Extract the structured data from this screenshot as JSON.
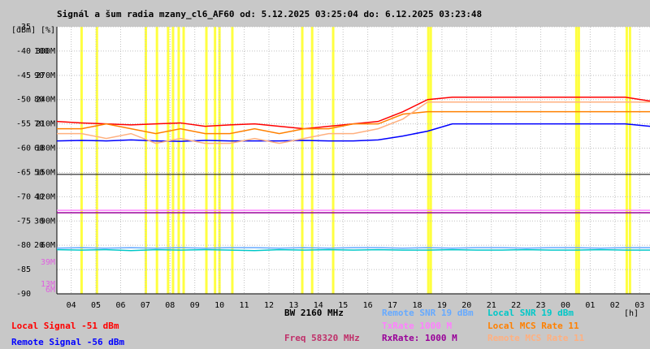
{
  "chart_data": {
    "type": "line",
    "title": "Signál a šum radia mzany_cl6_AF60 od: 5.12.2025 03:25:04 do: 6.12.2025 03:23:48",
    "y_units": [
      "[dBm]",
      "[%]"
    ],
    "x_unit": "[h]",
    "xlim": [
      0,
      24
    ],
    "ylim": [
      -90,
      -35
    ],
    "yticks": [
      -90,
      -85,
      -80,
      -75,
      -70,
      -65,
      -60,
      -55,
      -50,
      -45,
      -40,
      -35
    ],
    "pct_ticks": [
      {
        "value": -40,
        "label": "100"
      },
      {
        "value": -45,
        "label": "90"
      },
      {
        "value": -50,
        "label": "80"
      },
      {
        "value": -55,
        "label": "70"
      },
      {
        "value": -60,
        "label": "60"
      },
      {
        "value": -65,
        "label": "50"
      },
      {
        "value": -70,
        "label": "40"
      },
      {
        "value": -75,
        "label": "30"
      },
      {
        "value": -80,
        "label": "20"
      }
    ],
    "rate_ticks": [
      {
        "value": -40,
        "label": "300M"
      },
      {
        "value": -45,
        "label": "270M"
      },
      {
        "value": -50,
        "label": "240M"
      },
      {
        "value": -55,
        "label": "210M"
      },
      {
        "value": -60,
        "label": "180M"
      },
      {
        "value": -65,
        "label": "150M"
      },
      {
        "value": -70,
        "label": "120M"
      },
      {
        "value": -75,
        "label": "90M"
      },
      {
        "value": -80,
        "label": "60M"
      }
    ],
    "mcs_ticks": [
      {
        "value": -83.5,
        "label": "39M"
      },
      {
        "value": -88,
        "label": "13M"
      },
      {
        "value": -89.2,
        "label": "6M"
      }
    ],
    "mcs_tick_color": "#e060e0",
    "xticks": [
      {
        "value": 0.58,
        "label": "04"
      },
      {
        "value": 1.58,
        "label": "05"
      },
      {
        "value": 2.58,
        "label": "06"
      },
      {
        "value": 3.58,
        "label": "07"
      },
      {
        "value": 4.58,
        "label": "08"
      },
      {
        "value": 5.58,
        "label": "09"
      },
      {
        "value": 6.58,
        "label": "10"
      },
      {
        "value": 7.58,
        "label": "11"
      },
      {
        "value": 8.58,
        "label": "12"
      },
      {
        "value": 9.58,
        "label": "13"
      },
      {
        "value": 10.58,
        "label": "14"
      },
      {
        "value": 11.58,
        "label": "15"
      },
      {
        "value": 12.58,
        "label": "16"
      },
      {
        "value": 13.58,
        "label": "17"
      },
      {
        "value": 14.58,
        "label": "18"
      },
      {
        "value": 15.58,
        "label": "19"
      },
      {
        "value": 16.58,
        "label": "20"
      },
      {
        "value": 17.58,
        "label": "21"
      },
      {
        "value": 18.58,
        "label": "22"
      },
      {
        "value": 19.58,
        "label": "23"
      },
      {
        "value": 20.58,
        "label": "00"
      },
      {
        "value": 21.58,
        "label": "01"
      },
      {
        "value": 22.58,
        "label": "02"
      },
      {
        "value": 23.58,
        "label": "03"
      }
    ],
    "grid": true,
    "highlight_x": [
      1.0,
      1.62,
      3.6,
      4.05,
      4.5,
      4.7,
      4.93,
      5.13,
      6.05,
      6.4,
      6.58,
      7.1,
      9.93,
      10.33,
      11.18,
      15.03,
      15.13,
      21.02,
      21.12,
      23.06,
      23.19
    ],
    "highlight_color": "#ffff40",
    "reference_line": -65.4,
    "reference_color": "#000000",
    "x": [
      0,
      1,
      2,
      3,
      4,
      5,
      6,
      7,
      8,
      9,
      10,
      11,
      12,
      13,
      14,
      15,
      16,
      17,
      18,
      19,
      20,
      21,
      22,
      23,
      24
    ],
    "series": [
      {
        "name": "Local Signal -51 dBm",
        "color": "#ff0000",
        "values": [
          -54.5,
          -54.8,
          -55,
          -55.2,
          -55,
          -54.8,
          -55.5,
          -55.2,
          -55,
          -55.5,
          -56,
          -55.5,
          -55,
          -54.5,
          -52.5,
          -50,
          -49.5,
          -49.5,
          -49.5,
          -49.5,
          -49.5,
          -49.5,
          -49.5,
          -49.5,
          -50.3
        ]
      },
      {
        "name": "Remote Signal -56 dBm",
        "color": "#0000ff",
        "values": [
          -58.5,
          -58.4,
          -58.5,
          -58.3,
          -58.5,
          -58.6,
          -58.4,
          -58.5,
          -58.5,
          -58.5,
          -58.4,
          -58.5,
          -58.5,
          -58.3,
          -57.5,
          -56.5,
          -55,
          -55,
          -55,
          -55,
          -55,
          -55,
          -55,
          -55,
          -55.5
        ]
      },
      {
        "name": "Remote SNR 19 dBm",
        "color": "#66aaff",
        "values": [
          -80.6,
          -80.5,
          -80.6,
          -80.5,
          -80.6,
          -80.5,
          -80.6,
          -80.5,
          -80.5,
          -80.6,
          -80.5,
          -80.6,
          -80.5,
          -80.5,
          -80.6,
          -80.5,
          -80.6,
          -80.5,
          -80.5,
          -80.6,
          -80.5,
          -80.5,
          -80.6,
          -80.5,
          -80.5
        ]
      },
      {
        "name": "TxRate 1000 M",
        "color": "#ff80ff",
        "values": [
          -72.8,
          -72.8,
          -72.8,
          -72.8,
          -72.8,
          -72.8,
          -72.8,
          -72.8,
          -72.8,
          -72.8,
          -72.8,
          -72.8,
          -72.8,
          -72.8,
          -72.8,
          -72.8,
          -72.8,
          -72.8,
          -72.8,
          -72.8,
          -72.8,
          -72.8,
          -72.8,
          -72.8,
          -72.8
        ]
      },
      {
        "name": "RxRate: 1000 M",
        "color": "#990099",
        "values": [
          -73.3,
          -73.3,
          -73.3,
          -73.3,
          -73.3,
          -73.3,
          -73.3,
          -73.3,
          -73.3,
          -73.3,
          -73.3,
          -73.3,
          -73.3,
          -73.3,
          -73.3,
          -73.3,
          -73.3,
          -73.3,
          -73.3,
          -73.3,
          -73.3,
          -73.3,
          -73.3,
          -73.3,
          -73.3
        ]
      },
      {
        "name": "Local SNR 19 dBm",
        "color": "#00c8c8",
        "values": [
          -80.9,
          -81,
          -80.9,
          -81.1,
          -80.9,
          -81,
          -80.9,
          -81,
          -81.1,
          -80.9,
          -81,
          -80.9,
          -81,
          -80.9,
          -81,
          -81,
          -80.9,
          -81,
          -81,
          -80.9,
          -81,
          -81,
          -80.9,
          -81,
          -81
        ]
      },
      {
        "name": "Local MCS Rate 11",
        "color": "#ff8000",
        "values": [
          -56,
          -56,
          -55,
          -56,
          -57,
          -56,
          -57,
          -57,
          -56,
          -57,
          -56,
          -56,
          -55,
          -55,
          -53,
          -52.5,
          -52.5,
          -52.5,
          -52.5,
          -52.5,
          -52.5,
          -52.5,
          -52.5,
          -52.5,
          -52.5
        ]
      },
      {
        "name": "Remote MCS Rate 11",
        "color": "#ffb080",
        "values": [
          -57,
          -57,
          -58,
          -57,
          -59,
          -58,
          -59,
          -59,
          -58,
          -59,
          -58,
          -57,
          -57,
          -56,
          -54,
          -50.5,
          -50.5,
          -50.5,
          -50.5,
          -50.5,
          -50.5,
          -50.5,
          -50.5,
          -50.5,
          -50.5
        ]
      }
    ],
    "info": [
      {
        "text": "BW 2160 MHz",
        "color": "#000000"
      },
      {
        "text": "Freq 58320 MHz",
        "color": "#c0306a"
      }
    ]
  }
}
